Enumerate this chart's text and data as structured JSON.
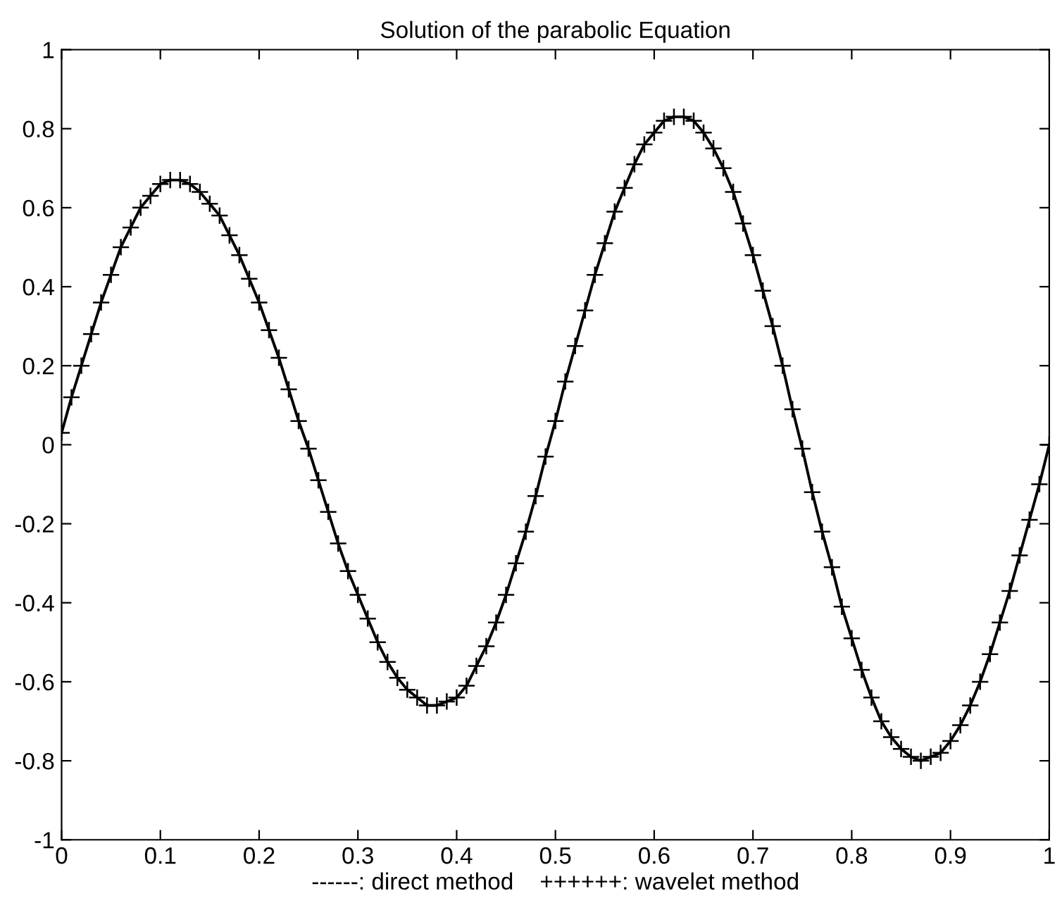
{
  "chart_data": {
    "type": "line",
    "title": "Solution of the parabolic Equation",
    "xlabel": "------: direct method    ++++++: wavelet method",
    "x": [
      0,
      0.01,
      0.02,
      0.03,
      0.04,
      0.05,
      0.06,
      0.07,
      0.08,
      0.09,
      0.1,
      0.11,
      0.12,
      0.13,
      0.14,
      0.15,
      0.16,
      0.17,
      0.18,
      0.19,
      0.2,
      0.21,
      0.22,
      0.23,
      0.24,
      0.25,
      0.26,
      0.27,
      0.28,
      0.29,
      0.3,
      0.31,
      0.32,
      0.33,
      0.34,
      0.35,
      0.36,
      0.37,
      0.38,
      0.39,
      0.4,
      0.41,
      0.42,
      0.43,
      0.44,
      0.45,
      0.46,
      0.47,
      0.48,
      0.49,
      0.5,
      0.51,
      0.52,
      0.53,
      0.54,
      0.55,
      0.56,
      0.57,
      0.58,
      0.59,
      0.6,
      0.61,
      0.62,
      0.63,
      0.64,
      0.65,
      0.66,
      0.67,
      0.68,
      0.69,
      0.7,
      0.71,
      0.72,
      0.73,
      0.74,
      0.75,
      0.76,
      0.77,
      0.78,
      0.79,
      0.8,
      0.81,
      0.82,
      0.83,
      0.84,
      0.85,
      0.86,
      0.87,
      0.88,
      0.89,
      0.9,
      0.91,
      0.92,
      0.93,
      0.94,
      0.95,
      0.96,
      0.97,
      0.98,
      0.99,
      1
    ],
    "series": [
      {
        "color": "#000000",
        "line_style": "solid",
        "values": [
          0.03,
          0.12,
          0.2,
          0.28,
          0.36,
          0.43,
          0.5,
          0.55,
          0.6,
          0.63,
          0.66,
          0.67,
          0.67,
          0.66,
          0.64,
          0.61,
          0.58,
          0.53,
          0.48,
          0.42,
          0.36,
          0.29,
          0.22,
          0.14,
          0.06,
          -0.01,
          -0.09,
          -0.17,
          -0.25,
          -0.32,
          -0.38,
          -0.44,
          -0.5,
          -0.55,
          -0.59,
          -0.62,
          -0.64,
          -0.66,
          -0.66,
          -0.65,
          -0.64,
          -0.61,
          -0.56,
          -0.51,
          -0.45,
          -0.38,
          -0.3,
          -0.22,
          -0.13,
          -0.03,
          0.06,
          0.16,
          0.25,
          0.34,
          0.43,
          0.51,
          0.59,
          0.65,
          0.71,
          0.76,
          0.79,
          0.82,
          0.83,
          0.83,
          0.82,
          0.79,
          0.75,
          0.7,
          0.64,
          0.56,
          0.48,
          0.39,
          0.3,
          0.2,
          0.09,
          -0.01,
          -0.12,
          -0.22,
          -0.31,
          -0.41,
          -0.49,
          -0.57,
          -0.64,
          -0.7,
          -0.74,
          -0.77,
          -0.79,
          -0.8,
          -0.79,
          -0.78,
          -0.75,
          -0.71,
          -0.66,
          -0.6,
          -0.53,
          -0.45,
          -0.37,
          -0.28,
          -0.19,
          -0.1,
          0.0
        ]
      },
      {
        "type": "scatter",
        "color": "#000000",
        "marker": "cross",
        "values": [
          0.03,
          0.12,
          0.2,
          0.28,
          0.36,
          0.43,
          0.5,
          0.55,
          0.6,
          0.63,
          0.66,
          0.67,
          0.67,
          0.66,
          0.64,
          0.61,
          0.58,
          0.53,
          0.48,
          0.42,
          0.36,
          0.29,
          0.22,
          0.14,
          0.06,
          -0.01,
          -0.09,
          -0.17,
          -0.25,
          -0.32,
          -0.38,
          -0.44,
          -0.5,
          -0.55,
          -0.59,
          -0.62,
          -0.64,
          -0.66,
          -0.66,
          -0.65,
          -0.64,
          -0.61,
          -0.56,
          -0.51,
          -0.45,
          -0.38,
          -0.3,
          -0.22,
          -0.13,
          -0.03,
          0.06,
          0.16,
          0.25,
          0.34,
          0.43,
          0.51,
          0.59,
          0.65,
          0.71,
          0.76,
          0.79,
          0.82,
          0.83,
          0.83,
          0.82,
          0.79,
          0.75,
          0.7,
          0.64,
          0.56,
          0.48,
          0.39,
          0.3,
          0.2,
          0.09,
          -0.01,
          -0.12,
          -0.22,
          -0.31,
          -0.41,
          -0.49,
          -0.57,
          -0.64,
          -0.7,
          -0.74,
          -0.77,
          -0.79,
          -0.8,
          -0.79,
          -0.78,
          -0.75,
          -0.71,
          -0.66,
          -0.6,
          -0.53,
          -0.45,
          -0.37,
          -0.28,
          -0.19,
          -0.1,
          0.0
        ]
      }
    ],
    "xlim": [
      0,
      1
    ],
    "xticks": [
      0,
      0.1,
      0.2,
      0.3,
      0.4,
      0.5,
      0.6,
      0.7,
      0.8,
      0.9,
      1
    ],
    "ylim": [
      -1,
      1
    ],
    "yticks": [
      -1,
      -0.8,
      -0.6,
      -0.4,
      -0.2,
      0,
      0.2,
      0.4,
      0.6,
      0.8,
      1
    ],
    "grid": false,
    "legend": false
  }
}
